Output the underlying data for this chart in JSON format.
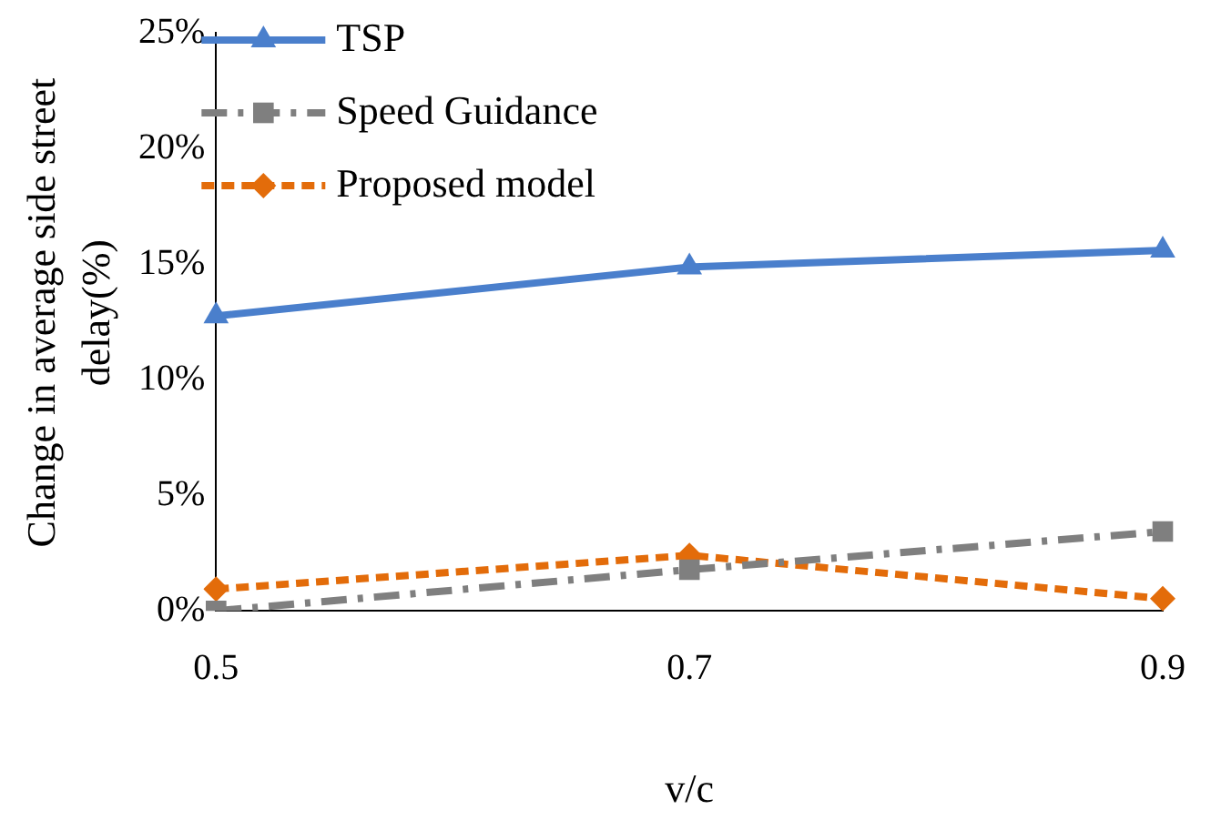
{
  "chart_data": {
    "type": "line",
    "xlabel": "v/c",
    "ylabel": "Change in average side street delay(%)",
    "categories": [
      "0.5",
      "0.7",
      "0.9"
    ],
    "series": [
      {
        "name": "TSP",
        "color": "#4a7fcc",
        "values": [
          12.75,
          14.87,
          15.59
        ],
        "marker": "triangle",
        "line_style": "solid"
      },
      {
        "name": "Speed Guidance",
        "color": "#7f7f7f",
        "values": [
          0,
          1.78,
          3.43
        ],
        "marker": "square",
        "line_style": "dashed"
      },
      {
        "name": "Proposed model",
        "color": "#e36c0a",
        "values": [
          0.94,
          2.4,
          0.53
        ],
        "marker": "diamond",
        "line_style": "dotted"
      }
    ],
    "ylim": [
      0,
      25
    ],
    "yticks": [
      {
        "value": 0,
        "label": "0%"
      },
      {
        "value": 5,
        "label": "5%"
      },
      {
        "value": 10,
        "label": "10%"
      },
      {
        "value": 15,
        "label": "15%"
      },
      {
        "value": 20,
        "label": "20%"
      },
      {
        "value": 25,
        "label": "25%"
      }
    ],
    "grid": false,
    "legend": "top left"
  }
}
